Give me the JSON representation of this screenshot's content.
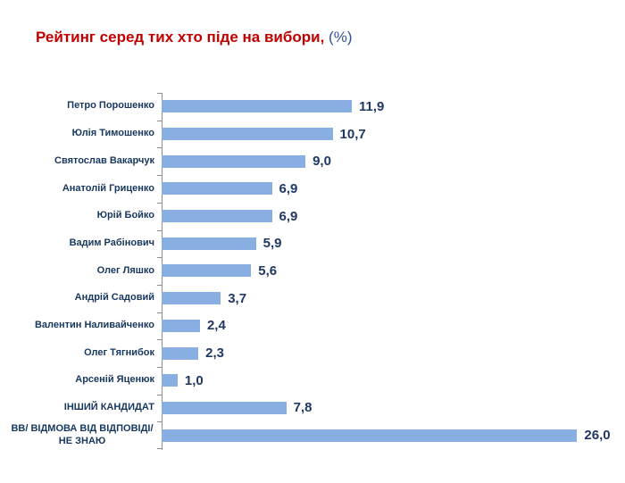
{
  "title": {
    "main": "Рейтинг серед тих хто піде на вибори,",
    "suffix": " (%)"
  },
  "colors": {
    "bar": "#89AEE1",
    "title_red": "#C00000",
    "title_blue": "#2F5496",
    "category_label": "#17375E",
    "value_label": "#203864",
    "axis": "#8C8C8C"
  },
  "chart_data": {
    "type": "bar",
    "orientation": "horizontal",
    "title": "Рейтинг серед тих хто піде на вибори, (%)",
    "categories": [
      "Петро Порошенко",
      "Юлія Тимошенко",
      "Святослав Вакарчук",
      "Анатолій Гриценко",
      "Юрій Бойко",
      "Вадим Рабінович",
      "Олег Ляшко",
      "Андрій Садовий",
      "Валентин Наливайченко",
      "Олег Тягнибок",
      "Арсеній Яценюк",
      "ІНШИЙ КАНДИДАТ",
      "ВВ/ ВІДМОВА ВІД ВІДПОВІДІ/\nНЕ ЗНАЮ"
    ],
    "values": [
      11.9,
      10.7,
      9.0,
      6.9,
      6.9,
      5.9,
      5.6,
      3.7,
      2.4,
      2.3,
      1.0,
      7.8,
      26.0
    ],
    "value_labels": [
      "11,9",
      "10,7",
      "9,0",
      "6,9",
      "6,9",
      "5,9",
      "5,6",
      "3,7",
      "2,4",
      "2,3",
      "1,0",
      "7,8",
      "26,0"
    ],
    "xlabel": "",
    "ylabel": "",
    "xlim": [
      0,
      26.5
    ],
    "grid": false,
    "legend": false,
    "value_label_position": "end-of-bar"
  }
}
